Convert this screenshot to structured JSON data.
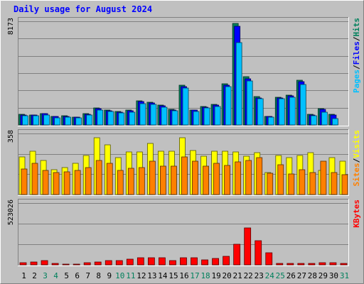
{
  "title": "Daily usage for August 2024",
  "colors": {
    "background": "#C0C0C0",
    "plot": "#C0C0C0",
    "hits": "#00805C",
    "files": "#0000FF",
    "pages": "#00C0FF",
    "visits": "#FFFF00",
    "sites": "#FF8000",
    "kbytes": "#FF0000",
    "title": "#0000FF",
    "weekend_day": "#00805C",
    "weekday": "#000000"
  },
  "legend": {
    "top": [
      {
        "label": "Pages",
        "color": "#00C0FF"
      },
      {
        "label": "Files",
        "color": "#0000FF"
      },
      {
        "label": "Hits",
        "color": "#00805C"
      }
    ],
    "middle": [
      {
        "label": "Sites",
        "color": "#FF8000"
      },
      {
        "label": "Visits",
        "color": "#FFFF00"
      }
    ],
    "bottom": [
      {
        "label": "KBytes",
        "color": "#FF0000"
      }
    ],
    "separator": "/"
  },
  "chart_data": [
    {
      "type": "bar",
      "panel": "top",
      "max_label": "8173",
      "ylim": [
        0,
        8173
      ],
      "categories": [
        "1",
        "2",
        "3",
        "4",
        "5",
        "6",
        "7",
        "8",
        "9",
        "10",
        "11",
        "12",
        "13",
        "14",
        "15",
        "16",
        "17",
        "18",
        "19",
        "20",
        "21",
        "22",
        "23",
        "24",
        "25",
        "26",
        "27",
        "28",
        "29",
        "30",
        "31"
      ],
      "series": [
        {
          "name": "Hits",
          "values": [
            830,
            810,
            900,
            680,
            700,
            630,
            880,
            1350,
            1180,
            1080,
            1150,
            1900,
            1800,
            1550,
            1250,
            3150,
            1200,
            1450,
            1600,
            3250,
            8000,
            3800,
            2250,
            680,
            2200,
            2350,
            3500,
            850,
            1300,
            850,
            0
          ]
        },
        {
          "name": "Files",
          "values": [
            800,
            780,
            870,
            650,
            670,
            600,
            850,
            1300,
            1130,
            1030,
            1100,
            1850,
            1750,
            1500,
            1200,
            3050,
            1150,
            1400,
            1550,
            3150,
            7800,
            3650,
            2150,
            650,
            2150,
            2280,
            3400,
            800,
            1250,
            800,
            0
          ]
        },
        {
          "name": "Pages",
          "values": [
            720,
            700,
            800,
            580,
            610,
            550,
            780,
            1200,
            1050,
            950,
            1020,
            1700,
            1600,
            1380,
            1120,
            2900,
            1080,
            1320,
            1450,
            3050,
            6500,
            3450,
            2050,
            600,
            2050,
            2200,
            3200,
            720,
            1000,
            520,
            0
          ]
        }
      ]
    },
    {
      "type": "bar",
      "panel": "middle",
      "max_label": "358",
      "ylim": [
        0,
        358
      ],
      "categories": [
        "1",
        "2",
        "3",
        "4",
        "5",
        "6",
        "7",
        "8",
        "9",
        "10",
        "11",
        "12",
        "13",
        "14",
        "15",
        "16",
        "17",
        "18",
        "19",
        "20",
        "21",
        "22",
        "23",
        "24",
        "25",
        "26",
        "27",
        "28",
        "29",
        "30",
        "31"
      ],
      "series": [
        {
          "name": "Visits",
          "values": [
            220,
            255,
            200,
            145,
            160,
            185,
            230,
            335,
            290,
            215,
            250,
            250,
            300,
            255,
            255,
            335,
            260,
            225,
            255,
            255,
            250,
            225,
            245,
            130,
            230,
            215,
            230,
            245,
            140,
            215,
            195
          ]
        },
        {
          "name": "Sites",
          "values": [
            150,
            185,
            140,
            130,
            135,
            140,
            160,
            200,
            185,
            140,
            155,
            160,
            195,
            165,
            165,
            220,
            195,
            165,
            185,
            170,
            190,
            200,
            215,
            125,
            175,
            120,
            145,
            130,
            195,
            130,
            115
          ]
        }
      ]
    },
    {
      "type": "bar",
      "panel": "bottom",
      "max_label": "523026",
      "ylim": [
        0,
        523026
      ],
      "categories": [
        "1",
        "2",
        "3",
        "4",
        "5",
        "6",
        "7",
        "8",
        "9",
        "10",
        "11",
        "12",
        "13",
        "14",
        "15",
        "16",
        "17",
        "18",
        "19",
        "20",
        "21",
        "22",
        "23",
        "24",
        "25",
        "26",
        "27",
        "28",
        "29",
        "30",
        "31"
      ],
      "series": [
        {
          "name": "KBytes",
          "values": [
            20000,
            22000,
            37000,
            14000,
            2000,
            4000,
            20000,
            24000,
            38000,
            35000,
            47000,
            63000,
            63000,
            60000,
            38000,
            63000,
            63000,
            45000,
            55000,
            70000,
            175000,
            312000,
            205000,
            105000,
            10000,
            11000,
            11000,
            15000,
            16000,
            17000,
            12000
          ]
        }
      ]
    }
  ],
  "day_labels": [
    "1",
    "2",
    "3",
    "4",
    "5",
    "6",
    "7",
    "8",
    "9",
    "10",
    "11",
    "12",
    "13",
    "14",
    "15",
    "16",
    "17",
    "18",
    "19",
    "20",
    "21",
    "22",
    "23",
    "24",
    "25",
    "26",
    "27",
    "28",
    "29",
    "30",
    "31"
  ],
  "weekend_days": [
    "3",
    "4",
    "10",
    "11",
    "17",
    "18",
    "24",
    "25",
    "31"
  ]
}
